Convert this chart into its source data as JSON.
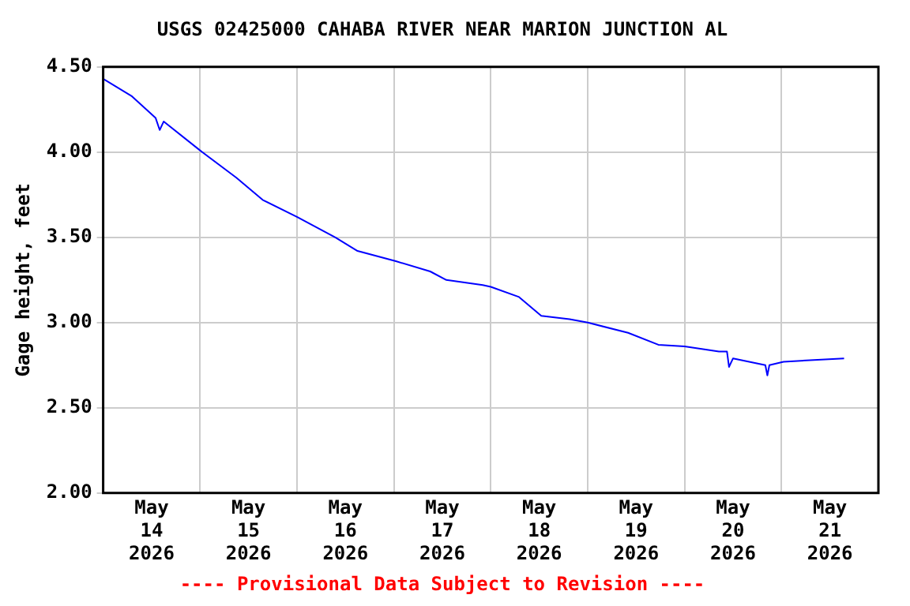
{
  "chart_data": {
    "type": "line",
    "title": "USGS 02425000 CAHABA RIVER NEAR MARION JUNCTION AL",
    "ylabel": "Gage height, feet",
    "annotations": [
      "---- Provisional Data Subject to Revision ----"
    ],
    "x": [
      "2026-05-14T00:00",
      "2026-05-14T07:00",
      "2026-05-14T13:00",
      "2026-05-14T14:00",
      "2026-05-14T15:00",
      "2026-05-15T00:00",
      "2026-05-15T09:00",
      "2026-05-15T15:30",
      "2026-05-16T00:00",
      "2026-05-16T09:30",
      "2026-05-16T15:00",
      "2026-05-17T00:30",
      "2026-05-17T09:00",
      "2026-05-17T13:00",
      "2026-05-17T22:00",
      "2026-05-18T00:00",
      "2026-05-18T07:00",
      "2026-05-18T12:30",
      "2026-05-18T19:30",
      "2026-05-19T00:00",
      "2026-05-19T10:00",
      "2026-05-19T17:30",
      "2026-05-20T00:00",
      "2026-05-20T08:30",
      "2026-05-20T10:30",
      "2026-05-20T11:00",
      "2026-05-20T12:00",
      "2026-05-20T20:00",
      "2026-05-20T20:30",
      "2026-05-20T21:00",
      "2026-05-21T00:30",
      "2026-05-21T08:00",
      "2026-05-21T15:30"
    ],
    "series": [
      {
        "color": "#0000ff",
        "values": [
          4.43,
          4.33,
          4.2,
          4.13,
          4.18,
          4.01,
          3.85,
          3.72,
          3.62,
          3.5,
          3.42,
          3.36,
          3.3,
          3.25,
          3.22,
          3.21,
          3.15,
          3.04,
          3.02,
          3.0,
          2.94,
          2.87,
          2.86,
          2.83,
          2.83,
          2.74,
          2.79,
          2.75,
          2.69,
          2.75,
          2.77,
          2.78,
          2.79
        ]
      }
    ],
    "xlim": [
      "2026-05-14T00:00",
      "2026-05-22T00:00"
    ],
    "xticks": [
      {
        "value": "2026-05-14T12:00",
        "label": "May 14 2026"
      },
      {
        "value": "2026-05-15T00:00",
        "label": null
      },
      {
        "value": "2026-05-15T12:00",
        "label": "May 15 2026"
      },
      {
        "value": "2026-05-16T00:00",
        "label": null
      },
      {
        "value": "2026-05-16T12:00",
        "label": "May 16 2026"
      },
      {
        "value": "2026-05-17T00:00",
        "label": null
      },
      {
        "value": "2026-05-17T12:00",
        "label": "May 17 2026"
      },
      {
        "value": "2026-05-18T00:00",
        "label": null
      },
      {
        "value": "2026-05-18T12:00",
        "label": "May 18 2026"
      },
      {
        "value": "2026-05-19T00:00",
        "label": null
      },
      {
        "value": "2026-05-19T12:00",
        "label": "May 19 2026"
      },
      {
        "value": "2026-05-20T00:00",
        "label": null
      },
      {
        "value": "2026-05-20T12:00",
        "label": "May 20 2026"
      },
      {
        "value": "2026-05-21T00:00",
        "label": null
      },
      {
        "value": "2026-05-21T12:00",
        "label": "May 21 2026"
      }
    ],
    "ylim": [
      2,
      4.5
    ],
    "yticks": [
      {
        "value": 2,
        "label": "2.00"
      },
      {
        "value": 2.5,
        "label": "2.50"
      },
      {
        "value": 3,
        "label": "3.00"
      },
      {
        "value": 3.5,
        "label": "3.50"
      },
      {
        "value": 4,
        "label": "4.00"
      },
      {
        "value": 4.5,
        "label": "4.50"
      }
    ],
    "grid": true,
    "legend": false,
    "marker": "none",
    "line_style": "solid"
  }
}
